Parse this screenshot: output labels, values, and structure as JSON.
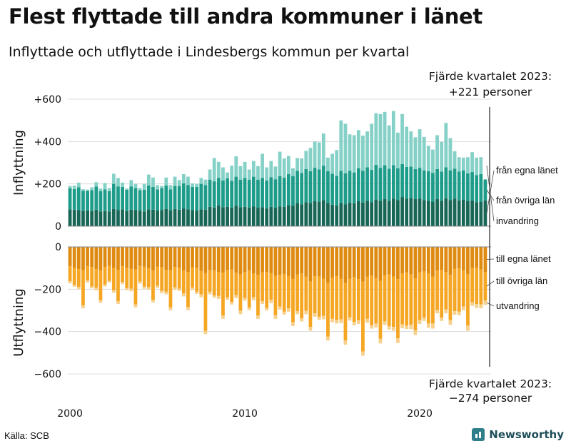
{
  "title": "Flest flyttade till andra kommuner i länet",
  "subtitle": "Inflyttade och utflyttade i Lindesbergs kommun per kvartal",
  "source": "Källa: SCB",
  "brand": "Newsworthy",
  "annotation_top": [
    "Fjärde kvartalet 2023:",
    "+221 personer"
  ],
  "annotation_bottom": [
    "Fjärde kvartalet 2023:",
    "−274 personer"
  ],
  "colors": {
    "in_own": "#176656",
    "in_other": "#1e9c8a",
    "in_immigration": "#86d1c7",
    "out_own": "#df8a10",
    "out_other": "#f5a623",
    "out_emigration": "#f7d08c"
  },
  "chart_data": [
    {
      "type": "bar",
      "stacked": true,
      "title": "",
      "ylabel": "Inflyttning",
      "ylim": [
        0,
        600
      ],
      "yticks": [
        0,
        200,
        400,
        600
      ],
      "ytick_labels": [
        "0",
        "+200",
        "+400",
        "+600"
      ],
      "x_start": "2000 Q1",
      "x_end": "2023 Q4",
      "xtick_labels": [
        "2000",
        "2010",
        "2020"
      ],
      "series": [
        {
          "name": "från egna länet",
          "values": [
            80,
            78,
            76,
            72,
            75,
            72,
            78,
            70,
            72,
            70,
            82,
            76,
            80,
            72,
            78,
            76,
            74,
            70,
            80,
            78,
            74,
            76,
            82,
            74,
            82,
            78,
            84,
            80,
            76,
            74,
            80,
            78,
            92,
            88,
            98,
            90,
            92,
            86,
            96,
            90,
            92,
            88,
            94,
            86,
            90,
            84,
            92,
            86,
            94,
            92,
            100,
            96,
            110,
            104,
            114,
            110,
            118,
            116,
            124,
            110,
            102,
            98,
            110,
            104,
            112,
            108,
            118,
            112,
            120,
            114,
            126,
            120,
            128,
            120,
            130,
            124,
            138,
            130,
            134,
            128,
            130,
            124,
            120,
            116,
            128,
            120,
            132,
            124,
            130,
            122,
            126,
            118,
            122,
            114,
            116,
            122
          ]
        },
        {
          "name": "från övriga län",
          "values": [
            100,
            98,
            108,
            95,
            92,
            98,
            110,
            96,
            102,
            96,
            118,
            112,
            106,
            100,
            110,
            104,
            96,
            102,
            112,
            108,
            100,
            104,
            110,
            100,
            108,
            112,
            118,
            114,
            110,
            112,
            120,
            116,
            128,
            124,
            130,
            126,
            134,
            128,
            138,
            130,
            136,
            132,
            140,
            134,
            138,
            132,
            140,
            136,
            142,
            138,
            146,
            140,
            152,
            148,
            156,
            150,
            158,
            152,
            162,
            150,
            146,
            140,
            152,
            146,
            150,
            146,
            156,
            150,
            158,
            152,
            164,
            156,
            160,
            152,
            158,
            150,
            156,
            150,
            148,
            142,
            146,
            140,
            140,
            136,
            142,
            138,
            146,
            140,
            142,
            136,
            138,
            132,
            134,
            128,
            130,
            99
          ]
        },
        {
          "name": "invandring",
          "values": [
            10,
            16,
            22,
            8,
            6,
            14,
            20,
            12,
            30,
            14,
            48,
            40,
            20,
            6,
            30,
            20,
            10,
            28,
            52,
            44,
            20,
            10,
            38,
            20,
            44,
            28,
            44,
            40,
            16,
            14,
            28,
            26,
            48,
            110,
            76,
            62,
            28,
            72,
            96,
            64,
            76,
            48,
            74,
            64,
            114,
            62,
            76,
            60,
            116,
            90,
            86,
            38,
            60,
            68,
            86,
            110,
            124,
            128,
            152,
            64,
            94,
            122,
            238,
            234,
            172,
            176,
            180,
            166,
            170,
            218,
            244,
            254,
            252,
            204,
            256,
            168,
            236,
            190,
            166,
            150,
            182,
            158,
            120,
            110,
            160,
            140,
            210,
            152,
            82,
            68,
            60,
            76,
            94,
            82,
            80,
            0
          ]
        }
      ]
    },
    {
      "type": "bar",
      "stacked": true,
      "title": "",
      "ylabel": "Utflyttning",
      "ylim": [
        -600,
        0
      ],
      "yticks": [
        0,
        -200,
        -400,
        -600
      ],
      "ytick_labels": [
        "0",
        "−200",
        "−400",
        "−600"
      ],
      "x_start": "2000 Q1",
      "x_end": "2023 Q4",
      "xtick_labels": [
        "2000",
        "2010",
        "2020"
      ],
      "series": [
        {
          "name": "till egna länet",
          "values": [
            -92,
            -98,
            -105,
            -110,
            -90,
            -95,
            -105,
            -112,
            -95,
            -90,
            -100,
            -108,
            -92,
            -98,
            -104,
            -106,
            -90,
            -94,
            -102,
            -112,
            -94,
            -96,
            -108,
            -110,
            -95,
            -98,
            -112,
            -118,
            -96,
            -100,
            -114,
            -124,
            -110,
            -112,
            -118,
            -122,
            -110,
            -106,
            -122,
            -130,
            -118,
            -112,
            -126,
            -132,
            -120,
            -118,
            -124,
            -136,
            -132,
            -128,
            -138,
            -150,
            -130,
            -126,
            -140,
            -164,
            -138,
            -140,
            -150,
            -170,
            -146,
            -138,
            -150,
            -170,
            -150,
            -144,
            -152,
            -164,
            -140,
            -136,
            -148,
            -160,
            -134,
            -130,
            -140,
            -152,
            -126,
            -120,
            -130,
            -148,
            -120,
            -116,
            -126,
            -140,
            -112,
            -108,
            -120,
            -132,
            -104,
            -102,
            -112,
            -128,
            -100,
            -98,
            -106,
            -118
          ]
        },
        {
          "name": "till övriga län",
          "values": [
            -70,
            -82,
            -84,
            -166,
            -68,
            -92,
            -88,
            -140,
            -82,
            -70,
            -104,
            -148,
            -74,
            -96,
            -94,
            -166,
            -74,
            -94,
            -88,
            -138,
            -90,
            -112,
            -104,
            -176,
            -96,
            -100,
            -108,
            -166,
            -96,
            -112,
            -110,
            -272,
            -102,
            -118,
            -114,
            -202,
            -128,
            -154,
            -106,
            -172,
            -124,
            -174,
            -112,
            -192,
            -136,
            -170,
            -126,
            -186,
            -150,
            -178,
            -152,
            -206,
            -174,
            -212,
            -162,
            -214,
            -176,
            -190,
            -176,
            -254,
            -194,
            -208,
            -192,
            -272,
            -182,
            -210,
            -194,
            -330,
            -200,
            -234,
            -214,
            -274,
            -218,
            -244,
            -238,
            -280,
            -240,
            -252,
            -238,
            -246,
            -226,
            -218,
            -236,
            -222,
            -186,
            -226,
            -176,
            -214,
            -200,
            -204,
            -170,
            -244,
            -162,
            -172,
            -166,
            -135
          ]
        },
        {
          "name": "utvandring",
          "values": [
            -10,
            -8,
            -10,
            -14,
            -10,
            -8,
            -12,
            -12,
            -10,
            -8,
            -12,
            -14,
            -10,
            -10,
            -12,
            -14,
            -10,
            -10,
            -12,
            -12,
            -10,
            -10,
            -12,
            -14,
            -12,
            -10,
            -14,
            -14,
            -12,
            -10,
            -14,
            -16,
            -12,
            -10,
            -14,
            -16,
            -12,
            -12,
            -14,
            -16,
            -12,
            -12,
            -14,
            -16,
            -14,
            -12,
            -16,
            -18,
            -14,
            -14,
            -16,
            -18,
            -14,
            -14,
            -16,
            -18,
            -16,
            -14,
            -16,
            -18,
            -16,
            -16,
            -18,
            -20,
            -16,
            -16,
            -18,
            -20,
            -18,
            -16,
            -18,
            -22,
            -16,
            -16,
            -18,
            -22,
            -18,
            -16,
            -20,
            -22,
            -18,
            -16,
            -20,
            -24,
            -16,
            -16,
            -18,
            -22,
            -16,
            -16,
            -18,
            -24,
            -16,
            -18,
            -18,
            -21
          ]
        }
      ]
    }
  ]
}
